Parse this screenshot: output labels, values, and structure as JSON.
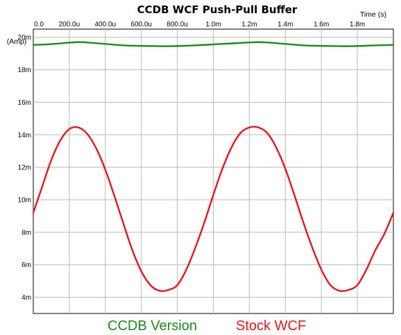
{
  "chart_data": {
    "type": "line",
    "title": "CCDB WCF Push-Pull Buffer",
    "xlabel": "Time (s)",
    "ylabel": "(Amp)",
    "xlim": [
      0,
      0.002
    ],
    "ylim": [
      0.003,
      0.0205
    ],
    "x_ticks": [
      0,
      0.0002,
      0.0004,
      0.0006,
      0.0008,
      0.001,
      0.0012,
      0.0014,
      0.0016,
      0.0018
    ],
    "x_tick_labels": [
      "0.0",
      "200.0u",
      "400.0u",
      "600.0u",
      "800.0u",
      "1.0m",
      "1.2m",
      "1.4m",
      "1.6m",
      "1.8m"
    ],
    "y_ticks": [
      0.004,
      0.006,
      0.008,
      0.01,
      0.012,
      0.014,
      0.016,
      0.018,
      0.02
    ],
    "y_tick_labels": [
      "4m",
      "6m",
      "8m",
      "10m",
      "12m",
      "14m",
      "16m",
      "18m",
      "20m"
    ],
    "grid": true,
    "x_axis_position": "top",
    "series": [
      {
        "name": "CCDB Version",
        "color": "#1a8a1a",
        "x": [
          0,
          0.0001,
          0.0002,
          0.00025,
          0.0003,
          0.0004,
          0.0005,
          0.0006,
          0.0007,
          0.00075,
          0.0008,
          0.0009,
          0.001,
          0.0011,
          0.0012,
          0.00125,
          0.0013,
          0.0014,
          0.0015,
          0.0016,
          0.0017,
          0.00175,
          0.0018,
          0.0019,
          0.002
        ],
        "y": [
          0.01953,
          0.01958,
          0.01967,
          0.0197,
          0.01968,
          0.01959,
          0.0195,
          0.01947,
          0.01945,
          0.01945,
          0.01946,
          0.0195,
          0.01956,
          0.01962,
          0.01968,
          0.0197,
          0.01968,
          0.01959,
          0.0195,
          0.01947,
          0.01945,
          0.01945,
          0.01946,
          0.0195,
          0.01953
        ]
      },
      {
        "name": "Stock WCF",
        "color": "#e8141b",
        "x": [
          0,
          5e-05,
          0.0001,
          0.00015,
          0.0002,
          0.00025,
          0.0003,
          0.00035,
          0.0004,
          0.00045,
          0.0005,
          0.00055,
          0.0006,
          0.00065,
          0.0007,
          0.00075,
          0.0008,
          0.00085,
          0.0009,
          0.00095,
          0.001,
          0.00105,
          0.0011,
          0.00115,
          0.0012,
          0.00125,
          0.0013,
          0.00135,
          0.0014,
          0.00145,
          0.0015,
          0.00155,
          0.0016,
          0.00165,
          0.0017,
          0.00175,
          0.0018,
          0.00185,
          0.0019,
          0.00195,
          0.002
        ],
        "y": [
          0.0092,
          0.01083,
          0.01245,
          0.01365,
          0.01435,
          0.01445,
          0.01405,
          0.01315,
          0.01185,
          0.01025,
          0.00855,
          0.0069,
          0.0056,
          0.00475,
          0.0044,
          0.00445,
          0.00475,
          0.0057,
          0.00705,
          0.0086,
          0.0103,
          0.0119,
          0.0132,
          0.0141,
          0.01445,
          0.01445,
          0.0141,
          0.0132,
          0.0119,
          0.0103,
          0.0086,
          0.00705,
          0.0057,
          0.00475,
          0.0044,
          0.00445,
          0.00475,
          0.0057,
          0.0069,
          0.0079,
          0.0092
        ]
      }
    ]
  }
}
